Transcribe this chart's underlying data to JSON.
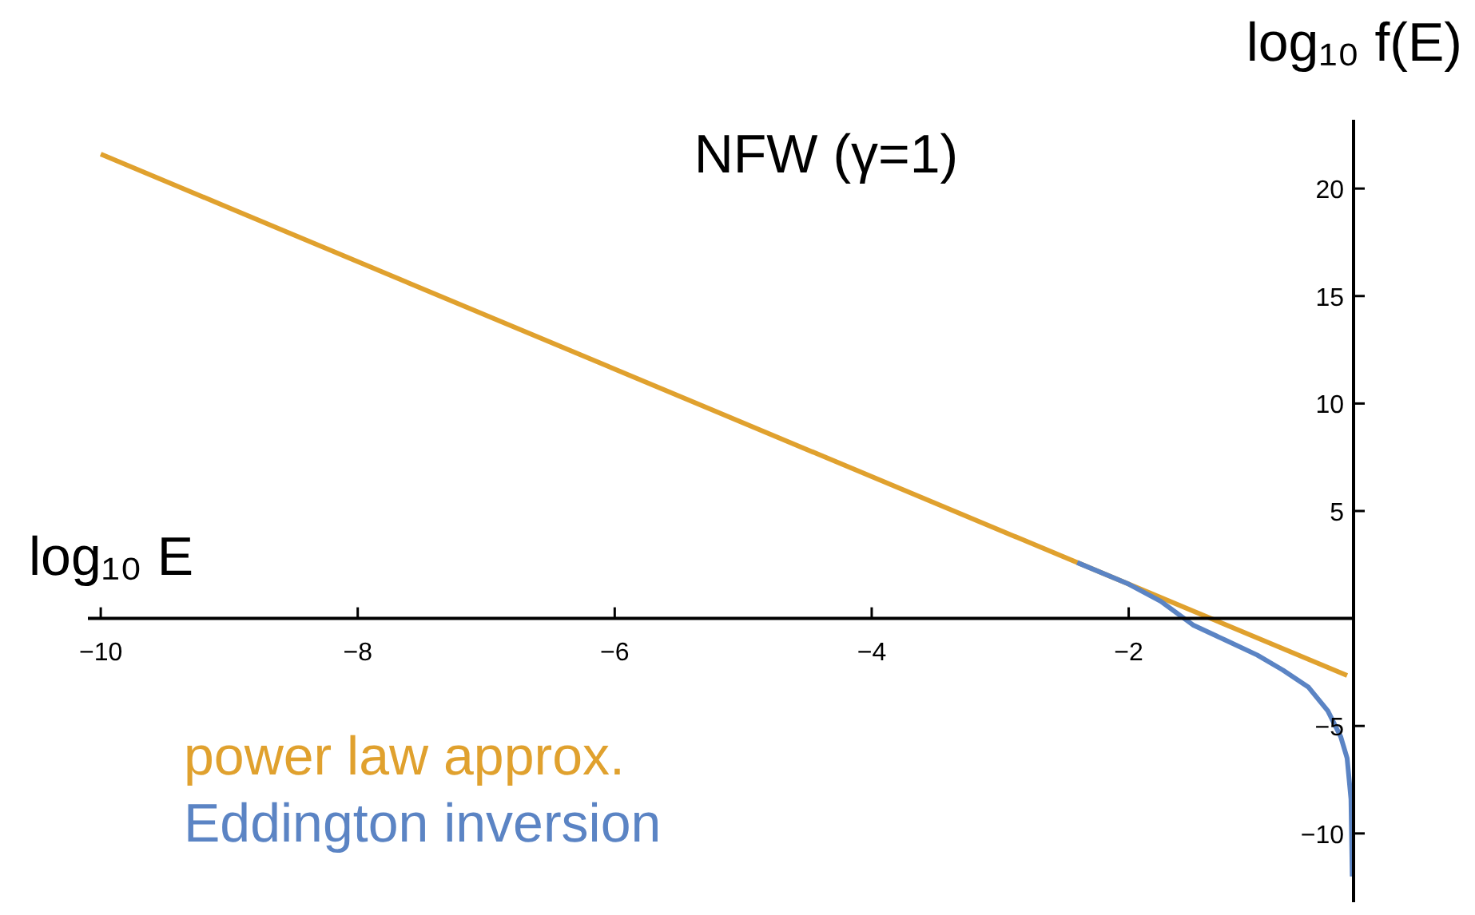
{
  "chart_data": {
    "type": "line",
    "title": "NFW (γ=1)",
    "xlabel": "log₁₀ E",
    "ylabel": "log₁₀ f(E)",
    "xlim": [
      -10.1,
      -0.25
    ],
    "ylim": [
      -13.2,
      23.2
    ],
    "xticks": [
      {
        "value": -10,
        "label": "−10"
      },
      {
        "value": -8,
        "label": "−8"
      },
      {
        "value": -6,
        "label": "−6"
      },
      {
        "value": -4,
        "label": "−4"
      },
      {
        "value": -2,
        "label": "−2"
      }
    ],
    "yticks": [
      {
        "value": -10,
        "label": "−10"
      },
      {
        "value": -5,
        "label": "−5"
      },
      5,
      10,
      15,
      20
    ],
    "legend": "bottom left",
    "line_style": "solid",
    "series": [
      {
        "name": "power law approx.",
        "color": "#e0a12e",
        "x": [
          -10,
          -0.3
        ],
        "values": [
          21.6,
          -2.65
        ]
      },
      {
        "name": "Eddington inversion",
        "color": "#5b84c4",
        "x": [
          -2.4,
          -2,
          -1.75,
          -1.5,
          -1.25,
          -1,
          -0.8,
          -0.6,
          -0.45,
          -0.35,
          -0.3,
          -0.27,
          -0.26
        ],
        "values": [
          2.6,
          1.6,
          0.8,
          -0.3,
          -1,
          -1.7,
          -2.4,
          -3.2,
          -4.3,
          -5.5,
          -6.5,
          -8.4,
          -12
        ]
      }
    ]
  }
}
